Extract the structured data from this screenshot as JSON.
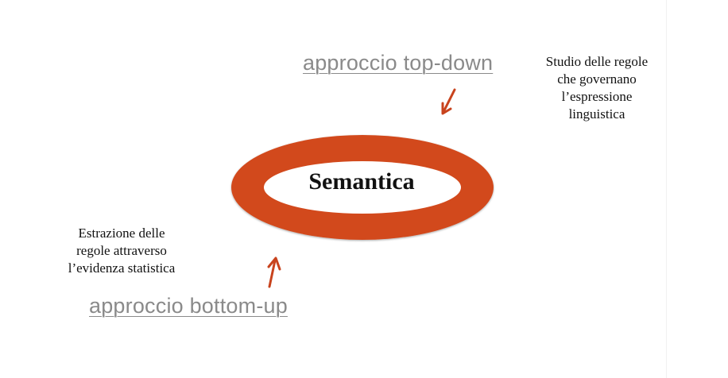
{
  "top_down": {
    "label": "approccio top-down",
    "caption_lines": [
      "Studio delle regole",
      "che governano",
      "l’espressione",
      "linguistica"
    ]
  },
  "bottom_up": {
    "label": "approccio bottom-up",
    "caption_lines": [
      "Estrazione delle",
      "regole attraverso",
      "l’evidenza statistica"
    ]
  },
  "center": {
    "label": "Semantica"
  },
  "colors": {
    "ring": "#d24a1c",
    "arrow": "#c8431d",
    "link_text": "#8a8a8a"
  }
}
